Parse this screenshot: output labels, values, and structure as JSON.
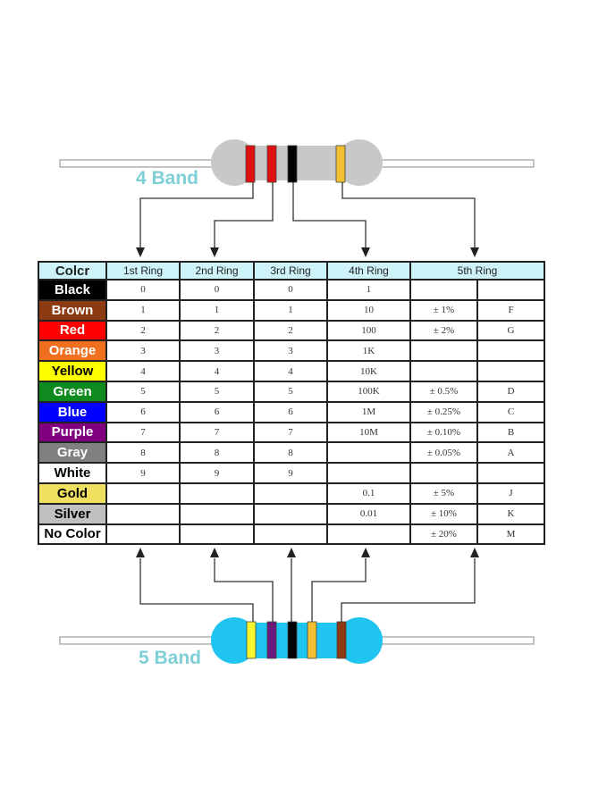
{
  "labels": {
    "four_band": "4 Band",
    "five_band": "5 Band"
  },
  "header": [
    "Colcr",
    "1st Ring",
    "2nd Ring",
    "3rd Ring",
    "4th Ring",
    "5th Ring"
  ],
  "rows": [
    {
      "name": "Black",
      "bg": "#000000",
      "fg": "#ffffff",
      "r1": "0",
      "r2": "0",
      "r3": "0",
      "r4": "1",
      "tol": "",
      "code": ""
    },
    {
      "name": "Brown",
      "bg": "#8b3a12",
      "fg": "#ffffff",
      "r1": "1",
      "r2": "1",
      "r3": "1",
      "r4": "10",
      "tol": "± 1%",
      "code": "F"
    },
    {
      "name": "Red",
      "bg": "#ff0000",
      "fg": "#ffffff",
      "r1": "2",
      "r2": "2",
      "r3": "2",
      "r4": "100",
      "tol": "± 2%",
      "code": "G"
    },
    {
      "name": "Orange",
      "bg": "#f07020",
      "fg": "#ffffff",
      "r1": "3",
      "r2": "3",
      "r3": "3",
      "r4": "1K",
      "tol": "",
      "code": ""
    },
    {
      "name": "Yellow",
      "bg": "#ffff00",
      "fg": "#000000",
      "r1": "4",
      "r2": "4",
      "r3": "4",
      "r4": "10K",
      "tol": "",
      "code": ""
    },
    {
      "name": "Green",
      "bg": "#0e8a1e",
      "fg": "#ffffff",
      "r1": "5",
      "r2": "5",
      "r3": "5",
      "r4": "100K",
      "tol": "± 0.5%",
      "code": "D"
    },
    {
      "name": "Blue",
      "bg": "#0000ff",
      "fg": "#ffffff",
      "r1": "6",
      "r2": "6",
      "r3": "6",
      "r4": "1M",
      "tol": "± 0.25%",
      "code": "C"
    },
    {
      "name": "Purple",
      "bg": "#800080",
      "fg": "#ffffff",
      "r1": "7",
      "r2": "7",
      "r3": "7",
      "r4": "10M",
      "tol": "± 0.10%",
      "code": "B"
    },
    {
      "name": "Gray",
      "bg": "#808080",
      "fg": "#ffffff",
      "r1": "8",
      "r2": "8",
      "r3": "8",
      "r4": "",
      "tol": "± 0.05%",
      "code": "A"
    },
    {
      "name": "White",
      "bg": "#ffffff",
      "fg": "#000000",
      "r1": "9",
      "r2": "9",
      "r3": "9",
      "r4": "",
      "tol": "",
      "code": ""
    },
    {
      "name": "Gold",
      "bg": "#efe060",
      "fg": "#000000",
      "r1": "",
      "r2": "",
      "r3": "",
      "r4": "0.1",
      "tol": "± 5%",
      "code": "J"
    },
    {
      "name": "Silver",
      "bg": "#c0c0c0",
      "fg": "#000000",
      "r1": "",
      "r2": "",
      "r3": "",
      "r4": "0.01",
      "tol": "± 10%",
      "code": "K"
    },
    {
      "name": "No Color",
      "bg": "#ffffff",
      "fg": "#000000",
      "r1": "",
      "r2": "",
      "r3": "",
      "r4": "",
      "tol": "± 20%",
      "code": "M"
    }
  ],
  "colors": {
    "four_band_body": "#c8c8c8",
    "five_band_body": "#20c4f0",
    "four_band_bands": [
      "#e01010",
      "#e01010",
      "#000000",
      "#f0c030"
    ],
    "five_band_bands": [
      "#f5f530",
      "#6a1a7a",
      "#000000",
      "#f0c030",
      "#8b3a12"
    ],
    "header_bg": "#cdf3f8",
    "label": "#7fcfd6"
  }
}
